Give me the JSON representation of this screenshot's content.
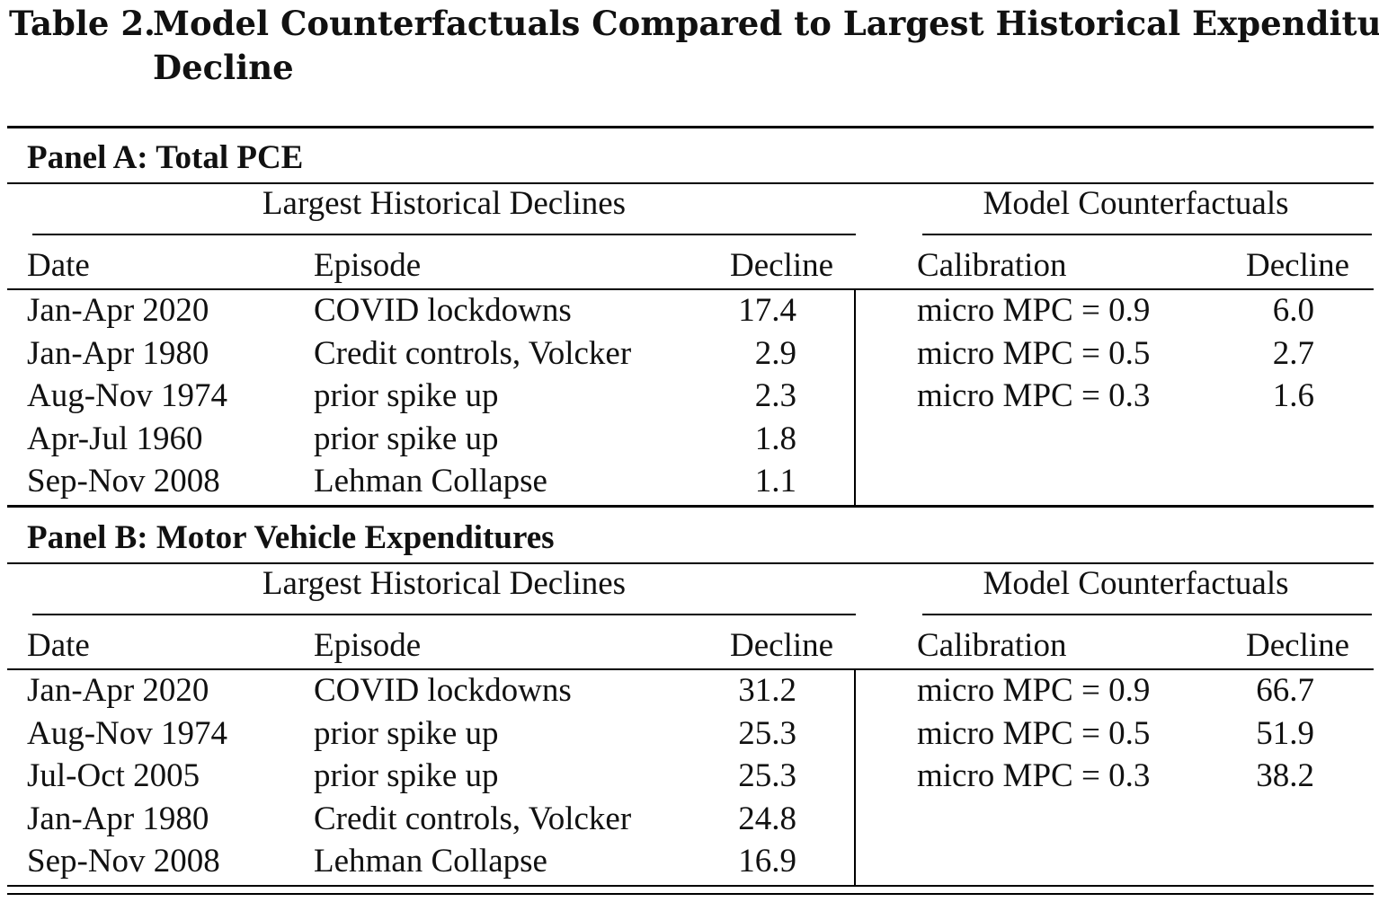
{
  "table": {
    "label": "Table 2.",
    "title_line1": "Model Counterfactuals Compared to Largest Historical Expenditure",
    "title_line2": "Decline",
    "headers": {
      "group_left": "Largest Historical Declines",
      "group_right": "Model Counterfactuals",
      "date": "Date",
      "episode": "Episode",
      "decline": "Decline",
      "calibration": "Calibration",
      "decline_model": "Decline"
    },
    "panels": [
      {
        "title": "Panel A: Total PCE",
        "historical": [
          {
            "date": "Jan-Apr 2020",
            "episode": "COVID lockdowns",
            "decline": "17.4"
          },
          {
            "date": "Jan-Apr 1980",
            "episode": "Credit controls, Volcker",
            "decline": "2.9"
          },
          {
            "date": "Aug-Nov 1974",
            "episode": "prior spike up",
            "decline": "2.3"
          },
          {
            "date": "Apr-Jul 1960",
            "episode": "prior spike up",
            "decline": "1.8"
          },
          {
            "date": "Sep-Nov 2008",
            "episode": "Lehman Collapse",
            "decline": "1.1"
          }
        ],
        "model": [
          {
            "calibration": "micro MPC = 0.9",
            "decline": "6.0"
          },
          {
            "calibration": "micro MPC = 0.5",
            "decline": "2.7"
          },
          {
            "calibration": "micro MPC = 0.3",
            "decline": "1.6"
          }
        ]
      },
      {
        "title": "Panel B: Motor Vehicle Expenditures",
        "historical": [
          {
            "date": "Jan-Apr 2020",
            "episode": "COVID lockdowns",
            "decline": "31.2"
          },
          {
            "date": "Aug-Nov 1974",
            "episode": "prior spike up",
            "decline": "25.3"
          },
          {
            "date": "Jul-Oct 2005",
            "episode": "prior spike up",
            "decline": "25.3"
          },
          {
            "date": "Jan-Apr 1980",
            "episode": "Credit controls, Volcker",
            "decline": "24.8"
          },
          {
            "date": "Sep-Nov 2008",
            "episode": "Lehman Collapse",
            "decline": "16.9"
          }
        ],
        "model": [
          {
            "calibration": "micro MPC = 0.9",
            "decline": "66.7"
          },
          {
            "calibration": "micro MPC = 0.5",
            "decline": "51.9"
          },
          {
            "calibration": "micro MPC = 0.3",
            "decline": "38.2"
          }
        ]
      }
    ]
  }
}
